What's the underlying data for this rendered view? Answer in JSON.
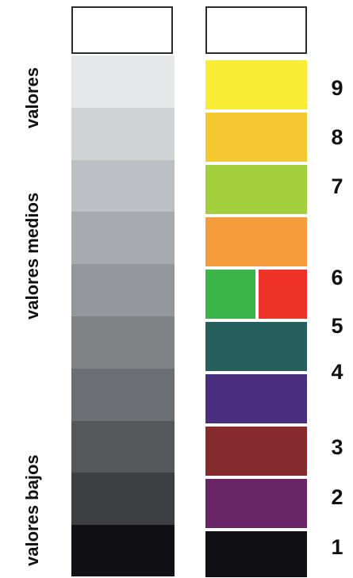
{
  "side_labels": {
    "top": "valores",
    "middle": "valores medios",
    "bottom": "valores bajos"
  },
  "gray_scale": [
    "#e6e7e8",
    "#d0d2d4",
    "#bcbfc3",
    "#a7aaaf",
    "#93969b",
    "#808285",
    "#6b6e73",
    "#55575b",
    "#3d3f42",
    "#111015"
  ],
  "color_scale": {
    "yellow": "#f9ec36",
    "yellow_orange": "#f5c832",
    "yellow_green": "#a3cf3f",
    "orange": "#f59d3c",
    "green": "#3bb54a",
    "red": "#ee3329",
    "blue_green": "#25605e",
    "blue_violet": "#4a2e80",
    "red_violet": "#852a2d",
    "violet": "#6a2566",
    "black": "#111015"
  },
  "numbers": [
    "9",
    "8",
    "7",
    "6",
    "5",
    "4",
    "3",
    "2",
    "1"
  ]
}
